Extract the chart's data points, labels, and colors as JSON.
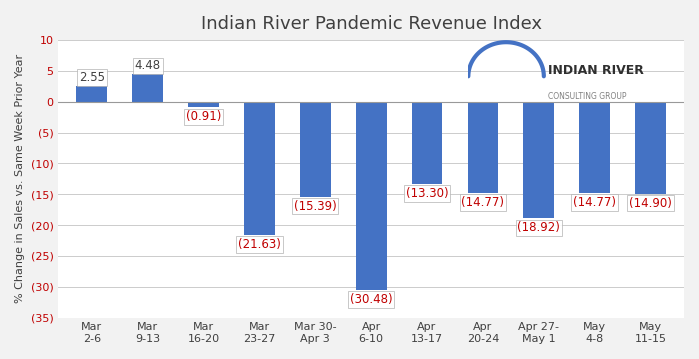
{
  "title": "Indian River Pandemic Revenue Index",
  "ylabel": "% Change in Sales vs. Same Week Prior Year",
  "categories": [
    "Mar\n2-6",
    "Mar\n9-13",
    "Mar\n16-20",
    "Mar\n23-27",
    "Mar 30-\nApr 3",
    "Apr\n6-10",
    "Apr\n13-17",
    "Apr\n20-24",
    "Apr 27-\nMay 1",
    "May\n4-8",
    "May\n11-15"
  ],
  "values": [
    2.55,
    4.48,
    -0.91,
    -21.63,
    -15.39,
    -30.48,
    -13.3,
    -14.77,
    -18.92,
    -14.77,
    -14.9
  ],
  "bar_color": "#4472C4",
  "label_color_pos": "#404040",
  "label_color_neg": "#C00000",
  "ylim_min": -35,
  "ylim_max": 10,
  "yticks": [
    10,
    5,
    0,
    -5,
    -10,
    -15,
    -20,
    -25,
    -30,
    -35
  ],
  "ytick_labels": [
    "10",
    "5",
    "0",
    "(5)",
    "(10)",
    "(15)",
    "(20)",
    "(25)",
    "(30)",
    "(35)"
  ],
  "background_color": "#F2F2F2",
  "plot_bg_color": "#FFFFFF",
  "grid_color": "#CCCCCC",
  "title_fontsize": 13,
  "label_fontsize": 8.5,
  "axis_fontsize": 8,
  "logo_text_main": "INDIAN RIVER",
  "logo_text_sub": "CONSULTING GROUP"
}
